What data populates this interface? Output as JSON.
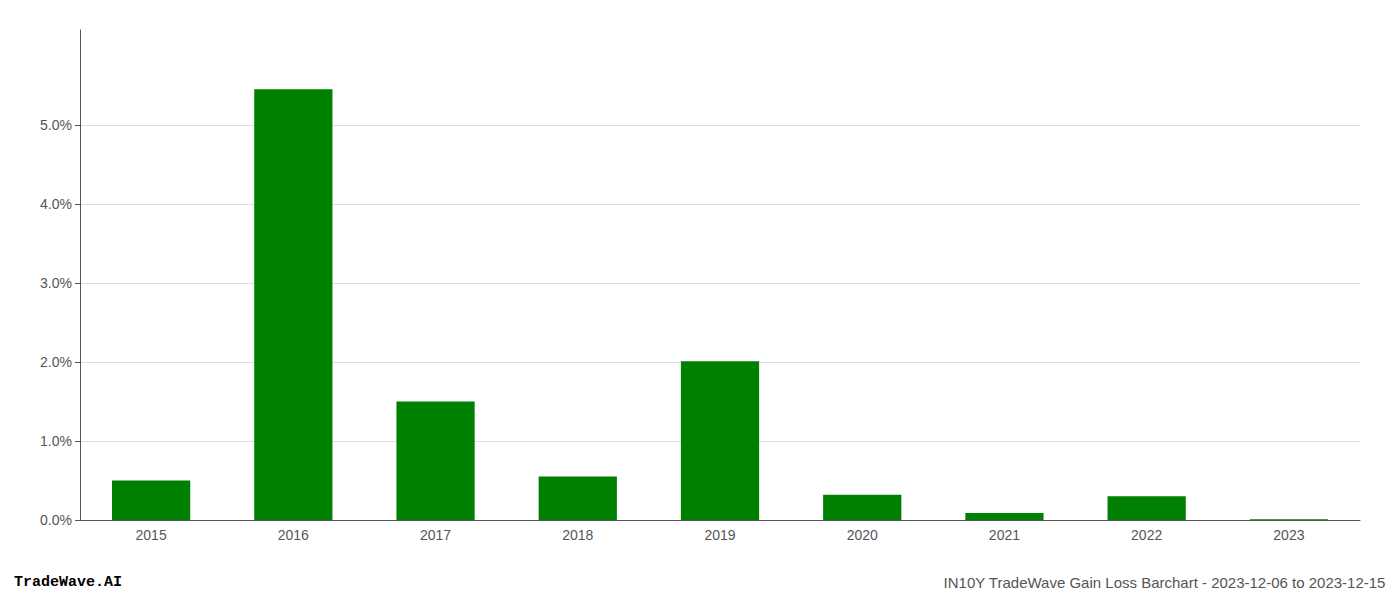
{
  "chart_data": {
    "type": "bar",
    "categories": [
      "2015",
      "2016",
      "2017",
      "2018",
      "2019",
      "2020",
      "2021",
      "2022",
      "2023"
    ],
    "values": [
      0.005,
      0.0545,
      0.015,
      0.0055,
      0.0201,
      0.0032,
      0.0009,
      0.003,
      0.0001
    ],
    "color": "#008000",
    "ylim": [
      0,
      0.062
    ],
    "yticks": [
      {
        "value": 0.0,
        "label": "0.0%"
      },
      {
        "value": 0.01,
        "label": "1.0%"
      },
      {
        "value": 0.02,
        "label": "2.0%"
      },
      {
        "value": 0.03,
        "label": "3.0%"
      },
      {
        "value": 0.04,
        "label": "4.0%"
      },
      {
        "value": 0.05,
        "label": "5.0%"
      }
    ],
    "grid": true,
    "annotations": [
      "TradeWave.AI",
      "IN10Y TradeWave Gain Loss Barchart - 2023-12-06 to 2023-12-15"
    ]
  }
}
